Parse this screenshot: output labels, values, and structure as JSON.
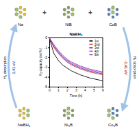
{
  "diagram": {
    "top": [
      {
        "label": "Na",
        "color": "#e8c21a"
      },
      {
        "label": "NiB",
        "color": "#8a9a5b"
      },
      {
        "label": "CoB",
        "color": "#4a7fc1"
      }
    ],
    "top_operators": [
      "+",
      "+"
    ],
    "bottom": [
      {
        "label": "NaBH₄",
        "color": "#e8c21a"
      },
      {
        "label": "Ni₃B",
        "color": "#8a9a5b"
      },
      {
        "label": "Co₃B",
        "color": "#4a7fc1"
      }
    ],
    "left_arrow": {
      "label": "H₂ desorption",
      "energy": "1.41 eV",
      "color": "#2b6cc4"
    },
    "right_arrow": {
      "label": "H₂ absorption",
      "energy": "-1.41 eV",
      "color": "#c0392b"
    }
  },
  "chart_data": {
    "type": "line",
    "title": "NaBH₄",
    "x_label": "Time (h)",
    "y_label": "H₂ capacity (wt.%)",
    "x": [
      0,
      0.5,
      1,
      1.5,
      2,
      2.5,
      3,
      3.5,
      4,
      4.5,
      5,
      5.5,
      6
    ],
    "xlim": [
      0,
      6
    ],
    "xticks": [
      0,
      1,
      2,
      3,
      4,
      5,
      6
    ],
    "ylim": [
      -5,
      0
    ],
    "yticks": [
      0,
      -1,
      -2,
      -3,
      -4,
      -5
    ],
    "legend": "top-right",
    "series": [
      {
        "name": "1st",
        "color": "#000000",
        "values": [
          0,
          -1.6,
          -2.3,
          -2.8,
          -3.1,
          -3.4,
          -3.6,
          -3.8,
          -3.95,
          -4.1,
          -4.2,
          -4.3,
          -4.4
        ]
      },
      {
        "name": "2nd",
        "color": "#e0302a",
        "values": [
          0,
          -1.0,
          -1.6,
          -2.1,
          -2.5,
          -2.8,
          -3.0,
          -3.2,
          -3.35,
          -3.5,
          -3.6,
          -3.7,
          -3.8
        ]
      },
      {
        "name": "3rd",
        "color": "#2040d0",
        "values": [
          0,
          -0.9,
          -1.5,
          -2.0,
          -2.4,
          -2.7,
          -2.9,
          -3.1,
          -3.25,
          -3.4,
          -3.5,
          -3.6,
          -3.7
        ]
      },
      {
        "name": "4th",
        "color": "#e040c0",
        "values": [
          0,
          -0.8,
          -1.4,
          -1.9,
          -2.3,
          -2.6,
          -2.8,
          -3.0,
          -3.15,
          -3.3,
          -3.4,
          -3.5,
          -3.6
        ]
      },
      {
        "name": "5th",
        "color": "#8040a0",
        "values": [
          0,
          -0.7,
          -1.3,
          -1.8,
          -2.2,
          -2.5,
          -2.7,
          -2.9,
          -3.05,
          -3.2,
          -3.3,
          -3.4,
          -3.5
        ]
      }
    ]
  }
}
